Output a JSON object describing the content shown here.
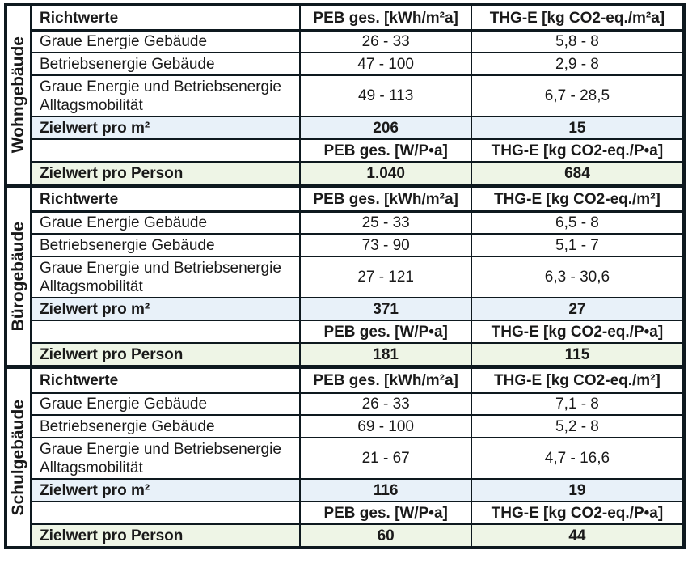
{
  "colors": {
    "border": "#0e191f",
    "text": "#1a1a1a",
    "row_highlight_blue": "#e8f1f9",
    "row_highlight_green": "#eef5e6"
  },
  "sections": [
    {
      "group": "Wohngebäude",
      "header1": {
        "c1": "Richtwerte",
        "c2": "PEB ges. [kWh/m²a]",
        "c3": "THG-E [kg CO2-eq./m²a]"
      },
      "rows": [
        {
          "label": "Graue Energie Gebäude",
          "peb": "26 - 33",
          "thg": "5,8 - 8"
        },
        {
          "label": "Betriebsenergie Gebäude",
          "peb": "47 - 100",
          "thg": "2,9 - 8"
        },
        {
          "label": "Graue Energie und Betriebsenergie Alltagsmobilität",
          "peb": "49 - 113",
          "thg": "6,7 - 28,5"
        }
      ],
      "zielwert_m2": {
        "label": "Zielwert pro m²",
        "peb": "206",
        "thg": "15"
      },
      "header2": {
        "c1": "",
        "c2": "PEB ges. [W/P•a]",
        "c3": "THG-E [kg CO2-eq./P•a]"
      },
      "zielwert_person": {
        "label": "Zielwert pro Person",
        "peb": "1.040",
        "thg": "684"
      }
    },
    {
      "group": "Bürogebäude",
      "header1": {
        "c1": "Richtwerte",
        "c2": "PEB ges. [kWh/m²a]",
        "c3": "THG-E [kg CO2-eq./m²]"
      },
      "rows": [
        {
          "label": "Graue Energie Gebäude",
          "peb": "25 - 33",
          "thg": "6,5 - 8"
        },
        {
          "label": "Betriebsenergie Gebäude",
          "peb": "73 - 90",
          "thg": "5,1 - 7"
        },
        {
          "label": "Graue Energie und Betriebsenergie Alltagsmobilität",
          "peb": "27 - 121",
          "thg": "6,3 - 30,6"
        }
      ],
      "zielwert_m2": {
        "label": "Zielwert pro m²",
        "peb": "371",
        "thg": "27"
      },
      "header2": {
        "c1": "",
        "c2": "PEB ges. [W/P•a]",
        "c3": "THG-E [kg CO2-eq./P•a]"
      },
      "zielwert_person": {
        "label": "Zielwert pro Person",
        "peb": "181",
        "thg": "115"
      }
    },
    {
      "group": "Schulgebäude",
      "header1": {
        "c1": "Richtwerte",
        "c2": "PEB ges. [kWh/m²a]",
        "c3": "THG-E [kg CO2-eq./m²]"
      },
      "rows": [
        {
          "label": "Graue Energie Gebäude",
          "peb": "26 - 33",
          "thg": "7,1 - 8"
        },
        {
          "label": "Betriebsenergie Gebäude",
          "peb": "69 - 100",
          "thg": "5,2 - 8"
        },
        {
          "label": "Graue Energie und Betriebsenergie Alltagsmobilität",
          "peb": "21 - 67",
          "thg": "4,7 - 16,6"
        }
      ],
      "zielwert_m2": {
        "label": "Zielwert pro m²",
        "peb": "116",
        "thg": "19"
      },
      "header2": {
        "c1": "",
        "c2": "PEB ges. [W/P•a]",
        "c3": "THG-E [kg CO2-eq./P•a]"
      },
      "zielwert_person": {
        "label": "Zielwert pro Person",
        "peb": "60",
        "thg": "44"
      }
    }
  ]
}
